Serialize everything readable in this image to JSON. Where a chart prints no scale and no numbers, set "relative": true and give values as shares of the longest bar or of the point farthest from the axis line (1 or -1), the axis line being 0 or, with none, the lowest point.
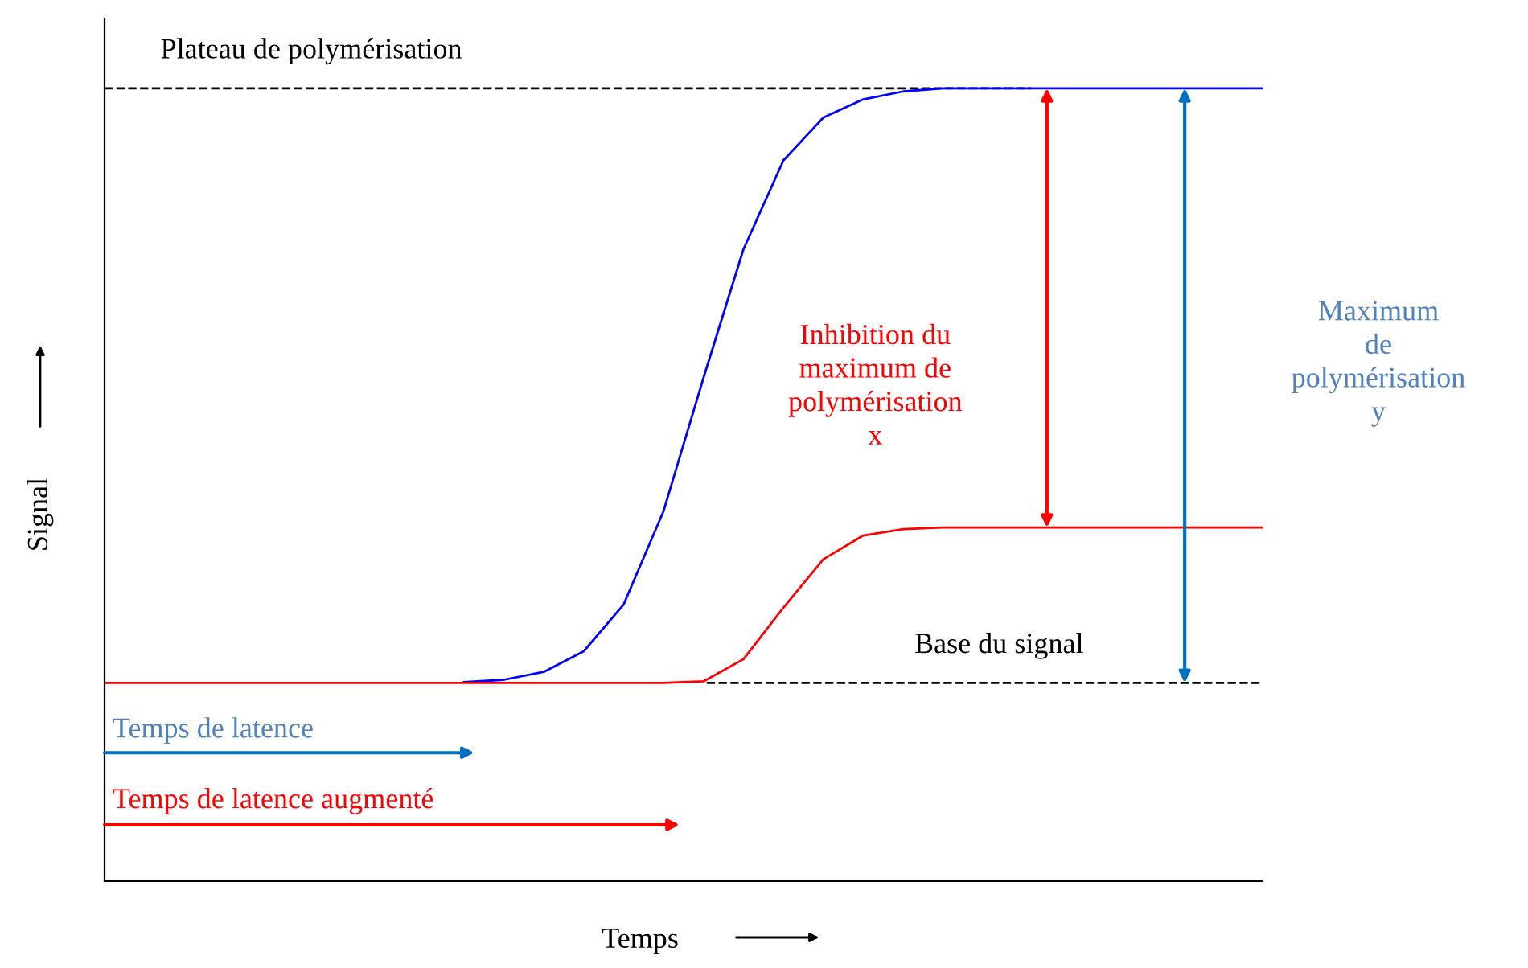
{
  "chart_data": {
    "type": "line",
    "relative": true,
    "xlabel": "Temps",
    "ylabel": "Signal",
    "categories": [
      null,
      null,
      null,
      null,
      null,
      null,
      null,
      null,
      null,
      null,
      null,
      null,
      null,
      null,
      null,
      null,
      null,
      null,
      null,
      null,
      null,
      null,
      null,
      null,
      null,
      null,
      null,
      null,
      null,
      null
    ],
    "series": [
      {
        "color": "#0000ff",
        "values": [
          null,
          null,
          null,
          null,
          null,
          null,
          null,
          null,
          null,
          0.251,
          0.254,
          0.264,
          0.29,
          0.349,
          0.467,
          0.635,
          0.797,
          0.909,
          0.963,
          0.986,
          0.996,
          1,
          1,
          1,
          1,
          1,
          1,
          1,
          1,
          1
        ]
      },
      {
        "color": "#ff0000",
        "values": [
          0.25,
          0.25,
          0.25,
          0.25,
          0.25,
          0.25,
          0.25,
          0.25,
          0.25,
          0.25,
          0.25,
          0.25,
          0.25,
          0.25,
          0.25,
          0.252,
          0.28,
          0.345,
          0.406,
          0.436,
          0.444,
          0.446,
          0.446,
          0.446,
          0.446,
          0.446,
          0.446,
          0.446,
          0.446,
          0.446
        ]
      }
    ],
    "ref_lines": [
      {
        "axis": "y",
        "value": 1,
        "label": "Plateau de polymérisation",
        "color": "#000000",
        "line_style": "dashed"
      },
      {
        "axis": "y",
        "value": 0.25,
        "label": "Base du signal",
        "color": "#000000",
        "line_style": "dashed"
      }
    ],
    "annotations": [
      "Inhibition du\nmaximum de\npolymérisation\nx",
      "Maximum\nde\npolymérisation\ny",
      "Temps de latence",
      "Temps de latence augmenté"
    ],
    "grid": false,
    "legend": false,
    "marker": "none",
    "line_style": "solid"
  }
}
